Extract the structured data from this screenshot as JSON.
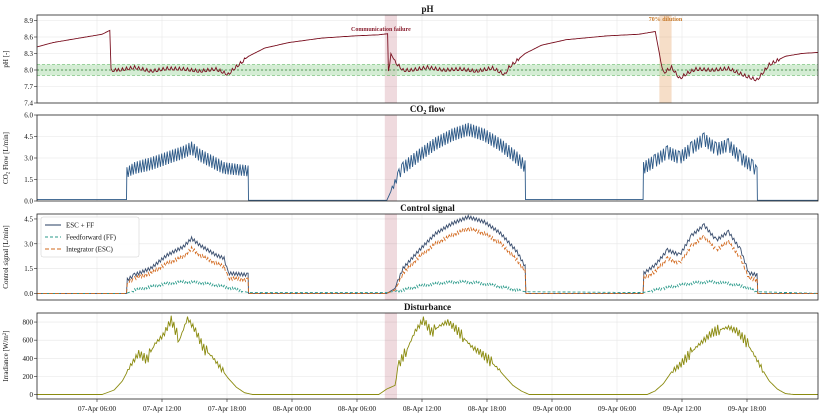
{
  "chart_data": [
    {
      "type": "line",
      "title": "pH",
      "ylabel": "pH [-]",
      "ylim": [
        7.4,
        9.0
      ],
      "yticks": [
        "7.4",
        "7.7",
        "8.0",
        "8.3",
        "8.6",
        "8.9"
      ],
      "setpoint": 8.0,
      "band": [
        7.9,
        8.1
      ],
      "annotations": [
        {
          "label": "Communication failure",
          "color": "#8b2232"
        },
        {
          "label": "70% dilution",
          "color": "#c87a2a"
        }
      ],
      "series": [
        {
          "color": "#7a1020",
          "points": [
            [
              0,
              8.42
            ],
            [
              4,
              8.5
            ],
            [
              8,
              8.55
            ],
            [
              12,
              8.6
            ],
            [
              16,
              8.65
            ],
            [
              17.9,
              8.72
            ],
            [
              18.2,
              8.0
            ],
            [
              20,
              8.0
            ],
            [
              24,
              8.05
            ],
            [
              28,
              7.98
            ],
            [
              32,
              8.03
            ],
            [
              36,
              8.02
            ],
            [
              40,
              7.98
            ],
            [
              44,
              8.02
            ],
            [
              47,
              7.92
            ],
            [
              48,
              8.0
            ],
            [
              52,
              8.25
            ],
            [
              56,
              8.4
            ],
            [
              62,
              8.5
            ],
            [
              70,
              8.58
            ],
            [
              78,
              8.62
            ],
            [
              84,
              8.64
            ],
            [
              86.2,
              8.66
            ],
            [
              86.4,
              7.95
            ],
            [
              87,
              8.3
            ],
            [
              88,
              8.15
            ],
            [
              90,
              8.0
            ],
            [
              92,
              8.0
            ],
            [
              96,
              8.05
            ],
            [
              100,
              8.0
            ],
            [
              104,
              8.02
            ],
            [
              108,
              7.98
            ],
            [
              112,
              8.04
            ],
            [
              115,
              7.92
            ],
            [
              116,
              8.05
            ],
            [
              120,
              8.3
            ],
            [
              124,
              8.45
            ],
            [
              130,
              8.55
            ],
            [
              140,
              8.62
            ],
            [
              148,
              8.65
            ],
            [
              152,
              8.7
            ],
            [
              153,
              8.3
            ],
            [
              154,
              7.95
            ],
            [
              156,
              8.05
            ],
            [
              158,
              7.85
            ],
            [
              160,
              7.95
            ],
            [
              162,
              8.02
            ],
            [
              166,
              8.0
            ],
            [
              170,
              8.03
            ],
            [
              174,
              7.9
            ],
            [
              177,
              7.82
            ],
            [
              180,
              8.1
            ],
            [
              184,
              8.25
            ],
            [
              188,
              8.3
            ],
            [
              192,
              8.32
            ]
          ]
        }
      ]
    },
    {
      "type": "line",
      "title": "CO2 flow",
      "ylabel": "CO2 Flow [L/min]",
      "ylim": [
        0,
        6.0
      ],
      "yticks": [
        "0.0",
        "1.5",
        "3.0",
        "4.5",
        "6.0"
      ],
      "series": [
        {
          "color": "#2e5a88",
          "points": [
            [
              0,
              0.1
            ],
            [
              22,
              0.1
            ],
            [
              22.1,
              2.0
            ],
            [
              24,
              2.3
            ],
            [
              28,
              2.6
            ],
            [
              32,
              3.0
            ],
            [
              36,
              3.4
            ],
            [
              38,
              3.7
            ],
            [
              40,
              3.2
            ],
            [
              44,
              2.6
            ],
            [
              46,
              2.3
            ],
            [
              51.9,
              2.1
            ],
            [
              52,
              0.05
            ],
            [
              86,
              0.05
            ],
            [
              89,
              1.9
            ],
            [
              90,
              2.3
            ],
            [
              94,
              3.2
            ],
            [
              98,
              4.0
            ],
            [
              102,
              4.6
            ],
            [
              106,
              5.0
            ],
            [
              110,
              4.6
            ],
            [
              114,
              3.9
            ],
            [
              118,
              3.0
            ],
            [
              120,
              2.4
            ],
            [
              120.1,
              0.1
            ],
            [
              149,
              0.1
            ],
            [
              149.1,
              2.3
            ],
            [
              152,
              2.8
            ],
            [
              155,
              3.4
            ],
            [
              158,
              3.0
            ],
            [
              161,
              3.7
            ],
            [
              164,
              4.3
            ],
            [
              167,
              3.6
            ],
            [
              170,
              3.9
            ],
            [
              173,
              3.0
            ],
            [
              176,
              2.4
            ],
            [
              177,
              2.0
            ],
            [
              177.1,
              0.05
            ],
            [
              192,
              0.05
            ]
          ]
        }
      ]
    },
    {
      "type": "line",
      "title": "Control signal",
      "ylabel": "Control signal [L/min]",
      "ylim": [
        -0.4,
        4.8
      ],
      "yticks": [
        "0.0",
        "1.5",
        "3.0",
        "4.5"
      ],
      "legend_position": "top-left",
      "series": [
        {
          "name": "ESC + FF",
          "color": "#3a4e6e",
          "dash": "",
          "points": [
            [
              0,
              0
            ],
            [
              22,
              0
            ],
            [
              22.2,
              0.8
            ],
            [
              24,
              1.1
            ],
            [
              28,
              1.5
            ],
            [
              32,
              2.3
            ],
            [
              36,
              2.8
            ],
            [
              38,
              3.3
            ],
            [
              40,
              2.9
            ],
            [
              44,
              2.3
            ],
            [
              46,
              2.1
            ],
            [
              47,
              1.2
            ],
            [
              51.9,
              1.1
            ],
            [
              52,
              0
            ],
            [
              86,
              0
            ],
            [
              88,
              0.3
            ],
            [
              90,
              1.5
            ],
            [
              94,
              2.6
            ],
            [
              98,
              3.6
            ],
            [
              102,
              4.2
            ],
            [
              106,
              4.6
            ],
            [
              110,
              4.3
            ],
            [
              114,
              3.6
            ],
            [
              118,
              2.5
            ],
            [
              120,
              1.6
            ],
            [
              120.2,
              0
            ],
            [
              149,
              0
            ],
            [
              149.2,
              1.2
            ],
            [
              152,
              1.7
            ],
            [
              155,
              2.6
            ],
            [
              158,
              2.3
            ],
            [
              161,
              3.5
            ],
            [
              164,
              4.1
            ],
            [
              167,
              3.2
            ],
            [
              170,
              3.7
            ],
            [
              173,
              2.6
            ],
            [
              175,
              1.2
            ],
            [
              177,
              1.1
            ],
            [
              177.2,
              0
            ],
            [
              192,
              0
            ]
          ]
        },
        {
          "name": "Feedforward (FF)",
          "color": "#2a9a8a",
          "dash": "3,2",
          "points": [
            [
              0,
              0
            ],
            [
              22,
              0
            ],
            [
              24,
              0.2
            ],
            [
              28,
              0.4
            ],
            [
              32,
              0.6
            ],
            [
              36,
              0.7
            ],
            [
              40,
              0.65
            ],
            [
              44,
              0.5
            ],
            [
              48,
              0.3
            ],
            [
              52,
              0.05
            ],
            [
              86,
              0.05
            ],
            [
              90,
              0.2
            ],
            [
              94,
              0.45
            ],
            [
              100,
              0.65
            ],
            [
              104,
              0.7
            ],
            [
              108,
              0.65
            ],
            [
              112,
              0.5
            ],
            [
              116,
              0.3
            ],
            [
              120,
              0.1
            ],
            [
              149,
              0.05
            ],
            [
              154,
              0.3
            ],
            [
              158,
              0.5
            ],
            [
              162,
              0.65
            ],
            [
              166,
              0.7
            ],
            [
              170,
              0.6
            ],
            [
              174,
              0.4
            ],
            [
              177,
              0.1
            ],
            [
              192,
              0
            ]
          ]
        },
        {
          "name": "Integrator (ESC)",
          "color": "#d2691e",
          "dash": "4,2",
          "points": [
            [
              0,
              0
            ],
            [
              22,
              0
            ],
            [
              22.2,
              0.6
            ],
            [
              24,
              0.9
            ],
            [
              28,
              1.2
            ],
            [
              32,
              1.8
            ],
            [
              36,
              2.2
            ],
            [
              38,
              2.7
            ],
            [
              40,
              2.3
            ],
            [
              44,
              1.8
            ],
            [
              46,
              1.6
            ],
            [
              47,
              0.9
            ],
            [
              51.9,
              0.8
            ],
            [
              52,
              0
            ],
            [
              86,
              0
            ],
            [
              88,
              0.2
            ],
            [
              90,
              1.2
            ],
            [
              94,
              2.2
            ],
            [
              98,
              3.0
            ],
            [
              102,
              3.5
            ],
            [
              106,
              3.9
            ],
            [
              110,
              3.6
            ],
            [
              114,
              3.0
            ],
            [
              118,
              2.0
            ],
            [
              120,
              1.3
            ],
            [
              120.2,
              0
            ],
            [
              149,
              0
            ],
            [
              149.2,
              0.9
            ],
            [
              152,
              1.3
            ],
            [
              155,
              2.1
            ],
            [
              158,
              1.8
            ],
            [
              161,
              2.9
            ],
            [
              164,
              3.4
            ],
            [
              167,
              2.6
            ],
            [
              170,
              3.1
            ],
            [
              173,
              2.1
            ],
            [
              175,
              0.9
            ],
            [
              177,
              0.8
            ],
            [
              177.2,
              0
            ],
            [
              192,
              0
            ]
          ]
        }
      ]
    },
    {
      "type": "line",
      "title": "Disturbance",
      "ylabel": "Irradiance [W/m2]",
      "ylim": [
        -50,
        900
      ],
      "yticks": [
        "0",
        "200",
        "400",
        "600",
        "800"
      ],
      "xticks": [
        "07-Apr 06:00",
        "07-Apr 12:00",
        "07-Apr 18:00",
        "08-Apr 00:00",
        "08-Apr 06:00",
        "08-Apr 12:00",
        "08-Apr 18:00",
        "09-Apr 00:00",
        "09-Apr 06:00",
        "09-Apr 12:00",
        "09-Apr 18:00"
      ],
      "series": [
        {
          "color": "#8b8b10",
          "points": [
            [
              0,
              0
            ],
            [
              16,
              0
            ],
            [
              19,
              50
            ],
            [
              21,
              150
            ],
            [
              23,
              320
            ],
            [
              25,
              450
            ],
            [
              27,
              380
            ],
            [
              29,
              560
            ],
            [
              31,
              650
            ],
            [
              33,
              820
            ],
            [
              35,
              600
            ],
            [
              37,
              840
            ],
            [
              39,
              700
            ],
            [
              41,
              500
            ],
            [
              43,
              420
            ],
            [
              45,
              300
            ],
            [
              47,
              180
            ],
            [
              49,
              80
            ],
            [
              51,
              20
            ],
            [
              53,
              0
            ],
            [
              84,
              0
            ],
            [
              86,
              60
            ],
            [
              88,
              100
            ],
            [
              89,
              330
            ],
            [
              91,
              500
            ],
            [
              93,
              700
            ],
            [
              95,
              820
            ],
            [
              97,
              680
            ],
            [
              99,
              760
            ],
            [
              101,
              800
            ],
            [
              103,
              720
            ],
            [
              105,
              620
            ],
            [
              107,
              520
            ],
            [
              109,
              460
            ],
            [
              111,
              380
            ],
            [
              113,
              300
            ],
            [
              115,
              200
            ],
            [
              117,
              100
            ],
            [
              119,
              40
            ],
            [
              121,
              0
            ],
            [
              150,
              0
            ],
            [
              152,
              40
            ],
            [
              154,
              120
            ],
            [
              156,
              250
            ],
            [
              158,
              320
            ],
            [
              160,
              420
            ],
            [
              162,
              520
            ],
            [
              164,
              600
            ],
            [
              166,
              680
            ],
            [
              168,
              720
            ],
            [
              170,
              740
            ],
            [
              172,
              700
            ],
            [
              174,
              600
            ],
            [
              176,
              460
            ],
            [
              178,
              300
            ],
            [
              180,
              150
            ],
            [
              182,
              60
            ],
            [
              184,
              10
            ],
            [
              186,
              0
            ],
            [
              192,
              0
            ]
          ]
        }
      ]
    }
  ]
}
